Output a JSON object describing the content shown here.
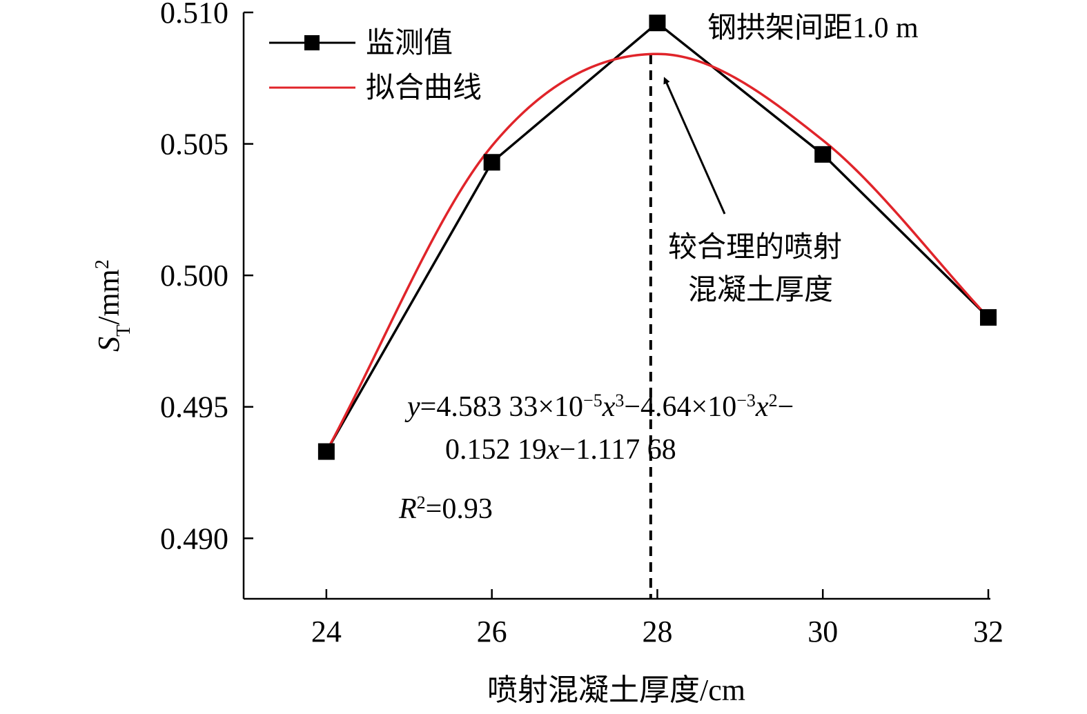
{
  "chart_data": {
    "type": "line",
    "xlabel": "喷射混凝土厚度/cm",
    "ylabel": {
      "main": "S",
      "sub": "T",
      "unit": "/mm",
      "sup": "2"
    },
    "x": [
      24,
      26,
      28,
      30,
      32
    ],
    "x_ticks": [
      "24",
      "26",
      "28",
      "30",
      "32"
    ],
    "xlim": [
      23,
      32
    ],
    "ylim": [
      0.4877,
      0.51
    ],
    "y_ticks": [
      "0.490",
      "0.495",
      "0.500",
      "0.505",
      "0.510"
    ],
    "y_tick_values": [
      0.49,
      0.495,
      0.5,
      0.505,
      0.51
    ],
    "grid": false,
    "legend_position": "top-left",
    "series": [
      {
        "name": "监测值",
        "color": "#000000",
        "marker": "square",
        "values": [
          0.4933,
          0.5043,
          0.5096,
          0.5046,
          0.4984
        ]
      },
      {
        "name": "拟合曲线",
        "color": "#e0242a",
        "marker": "none",
        "smooth": true,
        "values": [
          0.4933,
          0.50492,
          0.50842,
          0.50514,
          0.4984
        ]
      }
    ],
    "annotations": {
      "spacing": "钢拱架间距1.0 m",
      "optimal_line1": "较合理的喷射",
      "optimal_line2": "混凝土厚度",
      "optimal_x": 27.92,
      "equation_line1": {
        "y": "y",
        "eq1": "=4.583 33×10",
        "exp1": "−5",
        "x1": "x",
        "pow1": "3",
        "eq2": "−4.64×10",
        "exp2": "−3",
        "x2": "x",
        "pow2": "2",
        "eq3": "−"
      },
      "equation_line2": {
        "a": "0.152 19",
        "x": "x",
        "b": "−1.117 68"
      },
      "r2": {
        "r": "R",
        "sup": "2",
        "val": "=0.93"
      }
    }
  }
}
